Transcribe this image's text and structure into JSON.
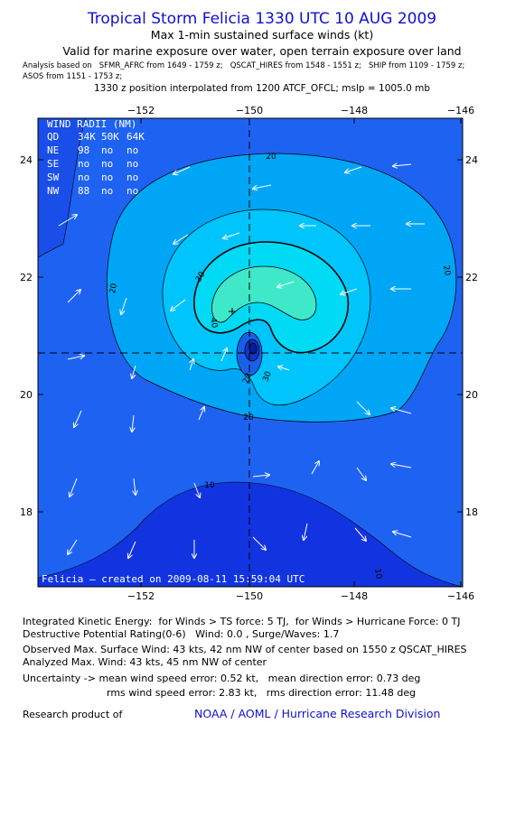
{
  "header": {
    "title": "Tropical Storm Felicia 1330 UTC 10 AUG 2009",
    "subtitle": "Max 1-min sustained surface winds (kt)",
    "validity": "Valid for marine exposure over water, open terrain exposure over land",
    "analysis": [
      "Analysis based on   SFMR_AFRC from 1649 - 1759 z;   QSCAT_HIRES from 1548 - 1551 z;   SHIP from 1109 - 1759 z;",
      "ASOS from 1151 - 1753 z;"
    ],
    "position_note": "1330 z position interpolated from 1200 ATCF_OFCL; mslp = 1005.0 mb"
  },
  "map": {
    "x_labels": [
      "−152",
      "−150",
      "−148",
      "−146"
    ],
    "y_labels": [
      "24",
      "22",
      "20",
      "18"
    ],
    "contour_labels": [
      "20",
      "20",
      "20",
      "30",
      "40",
      "20",
      "30",
      "20",
      "10",
      "10"
    ],
    "wind_radii": {
      "title": "WIND RADII (NM)",
      "header": [
        "QD",
        "34K",
        "50K",
        "64K"
      ],
      "rows": [
        [
          "NE",
          "98",
          "no",
          "no"
        ],
        [
          "SE",
          "no",
          "no",
          "no"
        ],
        [
          "SW",
          "no",
          "no",
          "no"
        ],
        [
          "NW",
          "88",
          "no",
          "no"
        ]
      ]
    },
    "credit": "Felicia — created on 2009-08-11 15:59:04 UTC"
  },
  "footer": {
    "lines": [
      "Integrated Kinetic Energy:  for Winds > TS force: 5 TJ,  for Winds > Hurricane Force: 0 TJ",
      "Destructive Potential Rating(0-6)   Wind: 0.0 , Surge/Waves: 1.7",
      "Observed Max. Surface Wind: 43 kts, 42 nm NW of center based on 1550 z QSCAT_HIRES",
      "Analyzed Max. Wind: 43 kts, 45 nm NW of center",
      "Uncertainty -> mean wind speed error: 0.52 kt,   mean direction error: 0.73 deg",
      "rms wind speed error: 2.83 kt,   rms direction error: 11.48 deg"
    ],
    "research": "Research product of",
    "link": "NOAA / AOML / Hurricane Research Division"
  }
}
